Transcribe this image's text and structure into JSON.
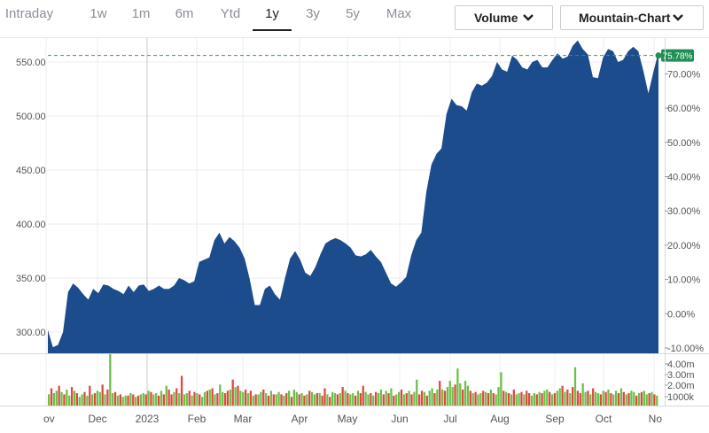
{
  "range_tabs": [
    {
      "label": "Intraday"
    },
    {
      "label": "1w"
    },
    {
      "label": "1m"
    },
    {
      "label": "6m"
    },
    {
      "label": "Ytd"
    },
    {
      "label": "1y",
      "active": true
    },
    {
      "label": "3y"
    },
    {
      "label": "5y"
    },
    {
      "label": "Max"
    }
  ],
  "controls": {
    "indicator_dropdown": "Volume",
    "chart_type_dropdown": "Mountain-Chart"
  },
  "colors": {
    "area_fill": "#1c4c8c",
    "reference_line": "#2e9c6b",
    "current_badge": "#1f8f55",
    "volume_up": "#6cc04a",
    "volume_down": "#e0483e"
  },
  "chart_data": {
    "type": "area",
    "price_axis": {
      "ticks": [
        "300.00",
        "350.00",
        "400.00",
        "450.00",
        "500.00",
        "550.00"
      ],
      "range": [
        280,
        582
      ]
    },
    "percent_axis": {
      "ticks": [
        "-10.00%",
        "0.00%",
        "10.00%",
        "20.00%",
        "30.00%",
        "40.00%",
        "50.00%",
        "60.00%",
        "70.00%"
      ]
    },
    "current_change_label": "75.78%",
    "reference_price": 556,
    "x_labels": [
      "ov",
      "Dec",
      "2023",
      "Feb",
      "Mar",
      "Apr",
      "May",
      "Jun",
      "Jul",
      "Aug",
      "Sep",
      "Oct",
      "No"
    ],
    "series": [
      {
        "values": [
          302,
          286,
          288,
          300,
          337,
          345,
          341,
          335,
          330,
          340,
          336,
          344,
          343,
          340,
          338,
          335,
          343,
          337,
          343,
          344,
          338,
          340,
          343,
          340,
          340,
          343,
          350,
          348,
          345,
          347,
          365,
          367,
          369,
          385,
          392,
          382,
          388,
          384,
          378,
          368,
          349,
          325,
          325,
          340,
          343,
          335,
          330,
          350,
          368,
          375,
          367,
          355,
          352,
          360,
          372,
          382,
          385,
          387,
          385,
          382,
          378,
          371,
          370,
          372,
          376,
          370,
          365,
          355,
          345,
          342,
          346,
          351,
          371,
          385,
          392,
          430,
          455,
          465,
          470,
          502,
          516,
          510,
          509,
          505,
          522,
          530,
          528,
          531,
          537,
          550,
          543,
          541,
          556,
          552,
          545,
          543,
          550,
          552,
          545,
          545,
          552,
          558,
          553,
          555,
          565,
          570,
          562,
          557,
          536,
          535,
          554,
          562,
          560,
          550,
          552,
          560,
          564,
          560,
          542,
          521,
          541,
          559
        ],
        "cursor_value": 556
      }
    ],
    "volume": {
      "axis_ticks": [
        "4.00m",
        "3.00m",
        "2.00m",
        "1000k"
      ],
      "range_max": 4.3,
      "values": [
        0.9,
        1.4,
        1.0,
        1.2,
        1.6,
        1.1,
        0.9,
        1.3,
        0.8,
        1.5,
        1.2,
        1.0,
        0.7,
        0.9,
        1.1,
        0.8,
        1.6,
        0.9,
        1.0,
        1.2,
        1.1,
        1.7,
        0.9,
        1.3,
        4.2,
        1.0,
        1.1,
        0.8,
        0.9,
        0.7,
        0.8,
        0.8,
        1.0,
        0.9,
        0.7,
        0.8,
        0.9,
        1.0,
        0.9,
        1.2,
        1.1,
        0.9,
        1.0,
        0.8,
        1.2,
        0.9,
        1.6,
        1.3,
        0.9,
        1.1,
        1.4,
        1.0,
        2.4,
        0.9,
        1.0,
        1.2,
        0.8,
        1.1,
        1.0,
        0.9,
        0.7,
        1.1,
        1.2,
        1.3,
        1.4,
        0.9,
        1.0,
        1.7,
        1.1,
        1.0,
        1.2,
        1.3,
        2.1,
        1.5,
        1.6,
        1.2,
        1.1,
        1.3,
        1.0,
        1.2,
        0.8,
        0.9,
        0.9,
        1.1,
        1.3,
        1.0,
        0.8,
        1.2,
        0.9,
        0.9,
        1.1,
        0.9,
        0.8,
        1.0,
        1.2,
        0.7,
        1.3,
        1.1,
        0.9,
        1.0,
        0.8,
        0.9,
        1.2,
        1.1,
        0.9,
        1.0,
        1.0,
        0.8,
        1.4,
        0.9,
        0.7,
        1.1,
        1.0,
        0.9,
        1.0,
        1.5,
        1.2,
        1.0,
        0.9,
        1.0,
        0.8,
        1.2,
        1.0,
        1.6,
        1.1,
        0.9,
        1.0,
        0.8,
        1.1,
        1.0,
        1.3,
        0.9,
        1.2,
        1.0,
        1.4,
        0.8,
        0.9,
        1.1,
        1.3,
        0.9,
        1.0,
        1.2,
        0.9,
        1.1,
        2.1,
        0.9,
        1.2,
        1.1,
        0.8,
        1.2,
        1.4,
        1.0,
        1.3,
        2.0,
        1.3,
        1.2,
        1.5,
        2.0,
        1.5,
        1.7,
        3.0,
        1.8,
        1.3,
        2.0,
        1.6,
        1.2,
        1.0,
        1.1,
        0.9,
        1.0,
        1.2,
        1.1,
        1.0,
        1.3,
        1.0,
        0.9,
        1.5,
        2.7,
        1.2,
        1.1,
        1.0,
        0.9,
        1.3,
        0.9,
        1.0,
        1.1,
        0.9,
        1.2,
        1.0,
        0.8,
        1.0,
        0.9,
        1.1,
        1.0,
        1.2,
        1.3,
        1.1,
        0.9,
        1.0,
        1.2,
        1.4,
        1.6,
        1.1,
        1.3,
        1.0,
        1.5,
        3.1,
        1.2,
        1.0,
        1.8,
        1.1,
        1.2,
        0.9,
        1.4,
        1.1,
        1.0,
        0.9,
        1.2,
        1.1,
        1.3,
        1.0,
        0.9,
        1.2,
        1.0,
        1.4,
        1.1,
        0.9,
        1.0,
        1.2,
        1.1,
        0.8,
        1.0,
        1.1,
        1.2,
        0.9,
        1.0,
        1.1,
        0.9,
        0.8
      ],
      "up": [
        1,
        0,
        1,
        1,
        0,
        1,
        0,
        1,
        1,
        0,
        1,
        0,
        1,
        1,
        0,
        1,
        0,
        1,
        0,
        1,
        1,
        0,
        1,
        0,
        1,
        1,
        0,
        1,
        0,
        1,
        1,
        0,
        1,
        0,
        1,
        0,
        1,
        1,
        0,
        1,
        0,
        1,
        1,
        0,
        1,
        0,
        1,
        0,
        0,
        1,
        0,
        1,
        0,
        1,
        1,
        0,
        1,
        0,
        1,
        0,
        1,
        1,
        0,
        1,
        0,
        1,
        0,
        1,
        1,
        0,
        0,
        1,
        0,
        1,
        0,
        1,
        1,
        0,
        1,
        0,
        1,
        0,
        1,
        1,
        0,
        1,
        0,
        1,
        0,
        1,
        1,
        0,
        1,
        0,
        1,
        0,
        1,
        1,
        0,
        1,
        0,
        1,
        0,
        1,
        1,
        0,
        1,
        0,
        0,
        1,
        0,
        1,
        1,
        0,
        1,
        0,
        1,
        0,
        1,
        1,
        0,
        1,
        0,
        0,
        1,
        1,
        0,
        1,
        0,
        1,
        1,
        0,
        1,
        0,
        1,
        0,
        1,
        1,
        0,
        1,
        0,
        1,
        0,
        1,
        1,
        0,
        0,
        1,
        0,
        1,
        1,
        0,
        1,
        0,
        1,
        0,
        1,
        1,
        1,
        0,
        1,
        1,
        0,
        1,
        1,
        0,
        1,
        0,
        1,
        1,
        0,
        1,
        0,
        1,
        0,
        1,
        1,
        1,
        0,
        1,
        0,
        1,
        0,
        1,
        1,
        0,
        1,
        0,
        0,
        1,
        1,
        0,
        1,
        0,
        1,
        1,
        0,
        1,
        0,
        1,
        1,
        0,
        1,
        0,
        1,
        0,
        1,
        0,
        0,
        1,
        1,
        0,
        1,
        0,
        1,
        1,
        0,
        1,
        0,
        1,
        0,
        1,
        1,
        0,
        1,
        0,
        1,
        0,
        1,
        1,
        0,
        1,
        0,
        1,
        1,
        0,
        1,
        0,
        1,
        0,
        1,
        1,
        0,
        1,
        0,
        1,
        0,
        1,
        1,
        0
      ]
    }
  }
}
